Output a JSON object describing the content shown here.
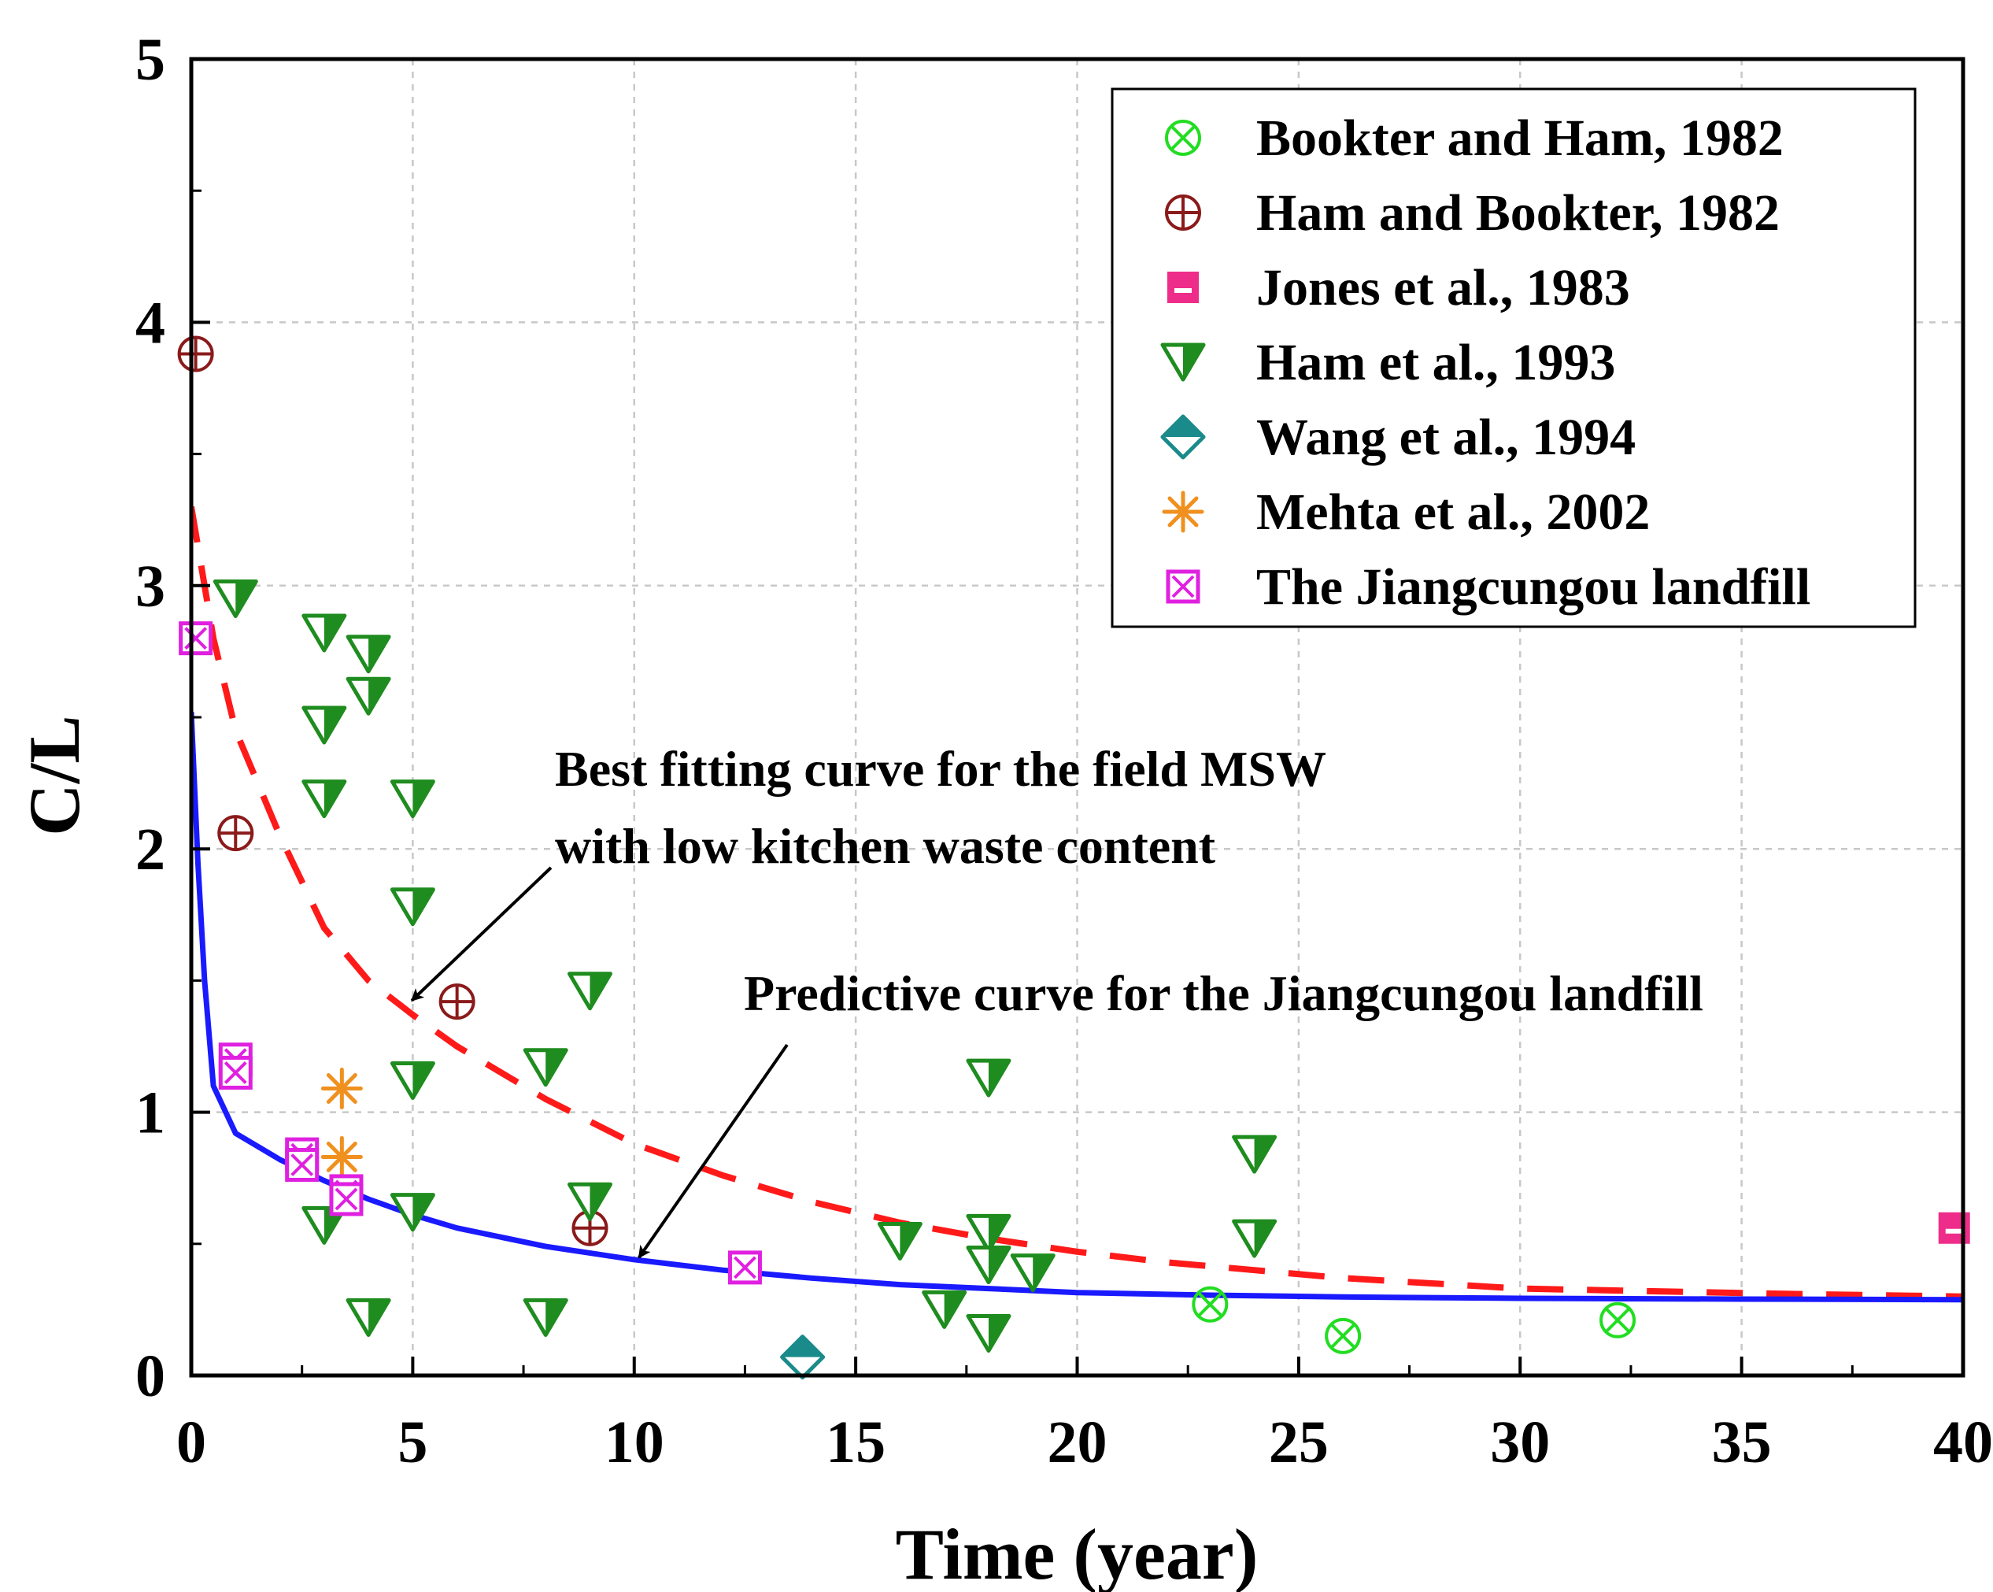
{
  "chart_data": {
    "type": "scatter",
    "xlabel": "Time (year)",
    "ylabel": "C/L",
    "xlim": [
      0,
      40
    ],
    "ylim": [
      0,
      5
    ],
    "xticks": [
      "0",
      "5",
      "10",
      "15",
      "20",
      "25",
      "30",
      "35",
      "40"
    ],
    "yticks": [
      "0",
      "1",
      "2",
      "3",
      "4",
      "5"
    ],
    "grid": true,
    "legend_position": "top-right",
    "series": [
      {
        "name": "Bookter and Ham, 1982",
        "marker": "circle-x",
        "color": "#22dd22",
        "points": [
          [
            23,
            0.27
          ],
          [
            26,
            0.15
          ],
          [
            32.2,
            0.21
          ]
        ]
      },
      {
        "name": "Ham and Bookter, 1982",
        "marker": "circle-plus",
        "color": "#8b1a1a",
        "points": [
          [
            0.1,
            3.88
          ],
          [
            1,
            2.06
          ],
          [
            6,
            1.42
          ],
          [
            9,
            0.56
          ]
        ]
      },
      {
        "name": "Jones et al., 1983",
        "marker": "square-dash",
        "color": "#ee2d8a",
        "points": [
          [
            39.8,
            0.56
          ]
        ]
      },
      {
        "name": "Ham et al., 1993",
        "marker": "triangle-down",
        "color": "#1e8c1e",
        "points": [
          [
            1,
            2.95
          ],
          [
            3,
            2.82
          ],
          [
            4,
            2.74
          ],
          [
            4,
            2.58
          ],
          [
            3,
            2.47
          ],
          [
            3,
            2.19
          ],
          [
            5,
            2.19
          ],
          [
            5,
            1.78
          ],
          [
            9,
            1.46
          ],
          [
            8,
            1.17
          ],
          [
            5,
            1.12
          ],
          [
            18,
            1.13
          ],
          [
            24,
            0.84
          ],
          [
            9,
            0.66
          ],
          [
            5,
            0.62
          ],
          [
            3,
            0.57
          ],
          [
            16,
            0.51
          ],
          [
            24,
            0.52
          ],
          [
            18,
            0.54
          ],
          [
            18,
            0.42
          ],
          [
            19,
            0.39
          ],
          [
            17,
            0.25
          ],
          [
            4,
            0.22
          ],
          [
            8,
            0.22
          ],
          [
            18,
            0.16
          ]
        ]
      },
      {
        "name": "Wang et al., 1994",
        "marker": "diamond-half",
        "color": "#1a8a8a",
        "points": [
          [
            13.8,
            0.07
          ]
        ]
      },
      {
        "name": "Mehta et al., 2002",
        "marker": "asterisk",
        "color": "#f0901e",
        "points": [
          [
            3.4,
            1.09
          ],
          [
            3.4,
            0.83
          ]
        ]
      },
      {
        "name": "The Jiangcungou landfill",
        "marker": "square-x",
        "color": "#e020e0",
        "points": [
          [
            0.1,
            2.8
          ],
          [
            1,
            1.2
          ],
          [
            1,
            1.15
          ],
          [
            2.5,
            0.84
          ],
          [
            2.5,
            0.8
          ],
          [
            3.5,
            0.7
          ],
          [
            3.5,
            0.67
          ],
          [
            12.5,
            0.41
          ]
        ]
      }
    ],
    "curves": [
      {
        "name": "Best fitting curve for the field MSW with low kitchen waste content",
        "style": "dashed",
        "color": "#ff1a1a",
        "points": [
          [
            0,
            3.3
          ],
          [
            0.5,
            2.8
          ],
          [
            1,
            2.45
          ],
          [
            2,
            2.05
          ],
          [
            3,
            1.7
          ],
          [
            4,
            1.5
          ],
          [
            5,
            1.37
          ],
          [
            6,
            1.25
          ],
          [
            8,
            1.05
          ],
          [
            10,
            0.88
          ],
          [
            12,
            0.76
          ],
          [
            14,
            0.66
          ],
          [
            16,
            0.58
          ],
          [
            18,
            0.52
          ],
          [
            20,
            0.47
          ],
          [
            22,
            0.43
          ],
          [
            24,
            0.4
          ],
          [
            26,
            0.37
          ],
          [
            28,
            0.35
          ],
          [
            30,
            0.33
          ],
          [
            33,
            0.32
          ],
          [
            36,
            0.31
          ],
          [
            40,
            0.3
          ]
        ]
      },
      {
        "name": "Predictive curve for the Jiangcungou landfill",
        "style": "solid",
        "color": "#1a1aff",
        "points": [
          [
            0,
            2.52
          ],
          [
            0.15,
            1.95
          ],
          [
            0.3,
            1.5
          ],
          [
            0.5,
            1.1
          ],
          [
            1,
            0.92
          ],
          [
            2,
            0.82
          ],
          [
            3,
            0.74
          ],
          [
            4,
            0.67
          ],
          [
            5,
            0.61
          ],
          [
            6,
            0.56
          ],
          [
            8,
            0.49
          ],
          [
            10,
            0.44
          ],
          [
            12,
            0.4
          ],
          [
            14,
            0.37
          ],
          [
            16,
            0.345
          ],
          [
            18,
            0.33
          ],
          [
            20,
            0.315
          ],
          [
            23,
            0.305
          ],
          [
            26,
            0.298
          ],
          [
            30,
            0.293
          ],
          [
            35,
            0.29
          ],
          [
            40,
            0.288
          ]
        ]
      }
    ],
    "annotations": [
      {
        "lines": [
          "Best fitting curve for the field MSW",
          "with low kitchen waste content"
        ],
        "points_to": [
          4.8,
          1.4
        ]
      },
      {
        "lines": [
          "Predictive curve for the Jiangcungou landfill"
        ],
        "points_to": [
          10,
          0.43
        ]
      }
    ]
  }
}
